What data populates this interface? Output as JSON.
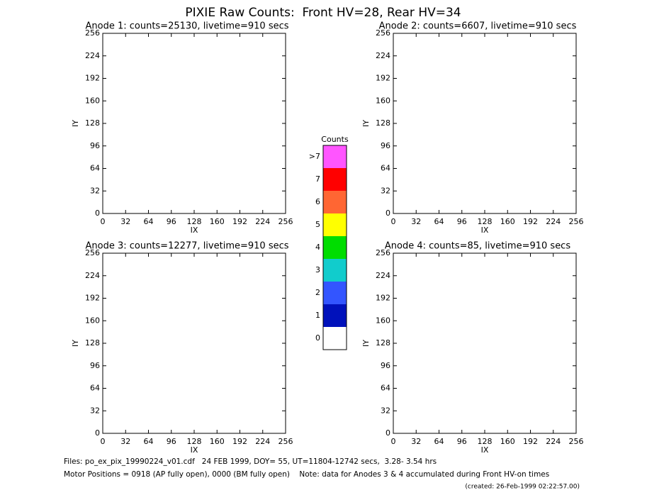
{
  "title": "PIXIE Raw Counts:  Front HV=28, Rear HV=34",
  "chart_data": [
    {
      "type": "heatmap",
      "title": "Anode 1: counts=25130, livetime=910 secs",
      "xlabel": "IX",
      "ylabel": "IY",
      "xlim": [
        0,
        256
      ],
      "ylim": [
        0,
        256
      ],
      "xticks": [
        0,
        32,
        64,
        96,
        128,
        160,
        192,
        224,
        256
      ],
      "yticks": [
        0,
        32,
        64,
        96,
        128,
        160,
        192,
        224,
        256
      ]
    },
    {
      "type": "heatmap",
      "title": "Anode 2: counts=6607, livetime=910 secs",
      "xlabel": "IX",
      "ylabel": "IY",
      "xlim": [
        0,
        256
      ],
      "ylim": [
        0,
        256
      ],
      "xticks": [
        0,
        32,
        64,
        96,
        128,
        160,
        192,
        224,
        256
      ],
      "yticks": [
        0,
        32,
        64,
        96,
        128,
        160,
        192,
        224,
        256
      ]
    },
    {
      "type": "heatmap",
      "title": "Anode 3: counts=12277, livetime=910 secs",
      "xlabel": "IX",
      "ylabel": "IY",
      "xlim": [
        0,
        256
      ],
      "ylim": [
        0,
        256
      ],
      "xticks": [
        0,
        32,
        64,
        96,
        128,
        160,
        192,
        224,
        256
      ],
      "yticks": [
        0,
        32,
        64,
        96,
        128,
        160,
        192,
        224,
        256
      ]
    },
    {
      "type": "heatmap",
      "title": "Anode 4: counts=85, livetime=910 secs",
      "xlabel": "IX",
      "ylabel": "IY",
      "xlim": [
        0,
        256
      ],
      "ylim": [
        0,
        256
      ],
      "xticks": [
        0,
        32,
        64,
        96,
        128,
        160,
        192,
        224,
        256
      ],
      "yticks": [
        0,
        32,
        64,
        96,
        128,
        160,
        192,
        224,
        256
      ]
    },
    {
      "type": "colorbar",
      "title": "Counts",
      "categories": [
        ">7",
        "7",
        "6",
        "5",
        "4",
        "3",
        "2",
        "1",
        "0"
      ],
      "colors": [
        "#ff55ff",
        "#ff0000",
        "#ff6633",
        "#ffff00",
        "#00dd00",
        "#11cccc",
        "#3355ff",
        "#0011bb",
        "#ffffff"
      ]
    }
  ],
  "footer": {
    "files": "Files: po_ex_pix_19990224_v01.cdf   24 FEB 1999, DOY= 55, UT=11804-12742 secs,  3.28- 3.54 hrs",
    "motor": "Motor Positions = 0918 (AP fully open), 0000 (BM fully open)    Note: data for Anodes 3 & 4 accumulated during Front HV-on times",
    "created": "(created: 26-Feb-1999 02:22:57.00)"
  }
}
